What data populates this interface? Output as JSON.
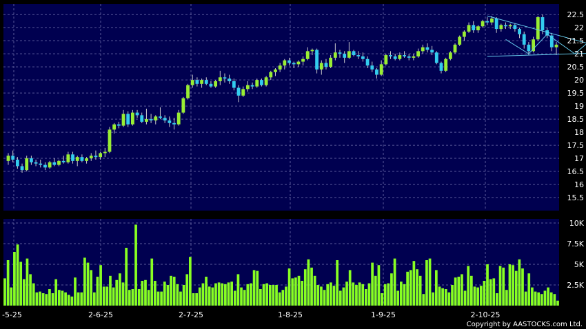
{
  "copyright": "Copyright by AASTOCKS.com Ltd.",
  "chart_data": [
    {
      "type": "candlestick",
      "panel": "price",
      "ylim": [
        15,
        22.9
      ],
      "y_ticks": [
        "15.5",
        "16",
        "16.5",
        "17",
        "17.5",
        "18",
        "18.5",
        "19",
        "19.5",
        "20",
        "20.5",
        "21",
        "21.5",
        "22",
        "22.5"
      ],
      "grid": true,
      "colors": {
        "up": "#99ee33",
        "down": "#33ccee",
        "wick": "#cccccc",
        "background": "#000050",
        "trendline": "#66ccee",
        "arrow": "#ffee44"
      },
      "trendlines": [
        {
          "from": [
            104,
            22.45
          ],
          "to": [
            132,
            21.1
          ]
        },
        {
          "from": [
            104,
            20.9
          ],
          "to": [
            132,
            21.05
          ]
        },
        {
          "from": [
            108,
            21.55
          ],
          "to": [
            113,
            21.0
          ]
        },
        {
          "from": [
            113,
            21.0
          ],
          "to": [
            117,
            21.75
          ]
        },
        {
          "from": [
            117,
            21.75
          ],
          "to": [
            123,
            21.0
          ]
        },
        {
          "from": [
            123,
            21.0
          ],
          "to": [
            127,
            21.6
          ]
        }
      ],
      "arrow_index": 130,
      "ohlc": [
        [
          16.9,
          17.2,
          16.75,
          17.1
        ],
        [
          17.1,
          17.3,
          16.85,
          16.95
        ],
        [
          16.95,
          17.05,
          16.6,
          16.7
        ],
        [
          16.7,
          16.8,
          16.45,
          16.55
        ],
        [
          16.55,
          17.1,
          16.5,
          17.0
        ],
        [
          17.0,
          17.1,
          16.75,
          16.85
        ],
        [
          16.85,
          16.95,
          16.7,
          16.8
        ],
        [
          16.8,
          16.95,
          16.65,
          16.75
        ],
        [
          16.75,
          16.85,
          16.55,
          16.65
        ],
        [
          16.65,
          16.9,
          16.6,
          16.85
        ],
        [
          16.85,
          17.0,
          16.7,
          16.75
        ],
        [
          16.75,
          16.95,
          16.7,
          16.9
        ],
        [
          16.9,
          17.1,
          16.8,
          16.85
        ],
        [
          16.85,
          17.25,
          16.8,
          17.15
        ],
        [
          17.15,
          17.25,
          16.8,
          16.9
        ],
        [
          16.9,
          17.1,
          16.7,
          17.05
        ],
        [
          17.05,
          17.15,
          16.85,
          16.9
        ],
        [
          16.9,
          17.05,
          16.8,
          17.0
        ],
        [
          17.0,
          17.2,
          16.9,
          17.1
        ],
        [
          17.1,
          17.3,
          16.95,
          17.05
        ],
        [
          17.05,
          17.25,
          16.95,
          17.2
        ],
        [
          17.2,
          17.4,
          17.05,
          17.25
        ],
        [
          17.25,
          18.2,
          17.2,
          18.1
        ],
        [
          18.1,
          18.35,
          17.95,
          18.3
        ],
        [
          18.3,
          18.4,
          18.15,
          18.25
        ],
        [
          18.25,
          18.85,
          18.2,
          18.7
        ],
        [
          18.7,
          18.8,
          18.2,
          18.3
        ],
        [
          18.3,
          18.85,
          18.25,
          18.75
        ],
        [
          18.75,
          18.85,
          18.55,
          18.65
        ],
        [
          18.65,
          18.75,
          18.35,
          18.4
        ],
        [
          18.4,
          18.9,
          18.3,
          18.5
        ],
        [
          18.5,
          18.7,
          18.35,
          18.45
        ],
        [
          18.45,
          18.65,
          18.3,
          18.6
        ],
        [
          18.6,
          18.95,
          18.5,
          18.55
        ],
        [
          18.55,
          18.65,
          18.35,
          18.45
        ],
        [
          18.45,
          18.6,
          18.2,
          18.35
        ],
        [
          18.35,
          18.55,
          18.1,
          18.3
        ],
        [
          18.3,
          18.85,
          18.25,
          18.75
        ],
        [
          18.75,
          19.35,
          18.7,
          19.3
        ],
        [
          19.3,
          19.85,
          19.25,
          19.8
        ],
        [
          19.8,
          20.2,
          19.7,
          20.0
        ],
        [
          20.0,
          20.1,
          19.75,
          19.85
        ],
        [
          19.85,
          20.05,
          19.7,
          20.0
        ],
        [
          20.0,
          20.1,
          19.8,
          19.85
        ],
        [
          19.85,
          19.95,
          19.7,
          19.75
        ],
        [
          19.75,
          20.0,
          19.7,
          19.95
        ],
        [
          19.95,
          20.35,
          19.8,
          20.1
        ],
        [
          20.1,
          20.25,
          19.9,
          20.05
        ],
        [
          20.05,
          20.2,
          19.85,
          19.95
        ],
        [
          19.95,
          20.05,
          19.6,
          19.7
        ],
        [
          19.7,
          19.8,
          19.15,
          19.4
        ],
        [
          19.4,
          19.75,
          19.35,
          19.65
        ],
        [
          19.65,
          19.95,
          19.55,
          19.8
        ],
        [
          19.8,
          19.9,
          19.65,
          19.75
        ],
        [
          19.75,
          20.05,
          19.7,
          20.0
        ],
        [
          20.0,
          20.05,
          19.75,
          19.8
        ],
        [
          19.8,
          20.15,
          19.75,
          20.1
        ],
        [
          20.1,
          20.35,
          20.0,
          20.3
        ],
        [
          20.3,
          20.45,
          20.15,
          20.4
        ],
        [
          20.4,
          20.65,
          20.3,
          20.55
        ],
        [
          20.55,
          20.8,
          20.4,
          20.75
        ],
        [
          20.75,
          20.85,
          20.55,
          20.65
        ],
        [
          20.65,
          20.7,
          20.45,
          20.6
        ],
        [
          20.6,
          20.75,
          20.5,
          20.7
        ],
        [
          20.7,
          20.9,
          20.55,
          20.8
        ],
        [
          20.8,
          21.25,
          20.75,
          21.1
        ],
        [
          21.1,
          21.2,
          20.95,
          21.15
        ],
        [
          21.15,
          21.2,
          20.25,
          20.4
        ],
        [
          20.4,
          20.75,
          20.2,
          20.65
        ],
        [
          20.65,
          20.8,
          20.4,
          20.5
        ],
        [
          20.5,
          20.95,
          20.45,
          20.85
        ],
        [
          20.85,
          21.4,
          20.75,
          21.05
        ],
        [
          21.05,
          21.15,
          20.85,
          21.0
        ],
        [
          21.0,
          21.1,
          20.65,
          20.85
        ],
        [
          20.85,
          21.45,
          20.8,
          21.1
        ],
        [
          21.1,
          21.15,
          20.9,
          20.95
        ],
        [
          20.95,
          21.1,
          20.8,
          20.9
        ],
        [
          20.9,
          21.05,
          20.7,
          20.8
        ],
        [
          20.8,
          20.9,
          20.45,
          20.55
        ],
        [
          20.55,
          20.7,
          20.3,
          20.4
        ],
        [
          20.4,
          20.45,
          20.05,
          20.2
        ],
        [
          20.2,
          20.75,
          20.15,
          20.6
        ],
        [
          20.6,
          21.0,
          20.55,
          20.95
        ],
        [
          20.95,
          21.1,
          20.8,
          20.9
        ],
        [
          20.9,
          21.0,
          20.75,
          20.8
        ],
        [
          20.8,
          21.05,
          20.75,
          20.95
        ],
        [
          20.95,
          21.1,
          20.85,
          20.9
        ],
        [
          20.9,
          21.0,
          20.75,
          20.85
        ],
        [
          20.85,
          21.0,
          20.75,
          20.9
        ],
        [
          20.9,
          21.2,
          20.85,
          21.1
        ],
        [
          21.1,
          21.35,
          21.0,
          21.25
        ],
        [
          21.25,
          21.4,
          21.05,
          21.15
        ],
        [
          21.15,
          21.3,
          20.95,
          21.05
        ],
        [
          21.05,
          21.1,
          20.6,
          20.65
        ],
        [
          20.65,
          20.7,
          20.25,
          20.35
        ],
        [
          20.35,
          20.85,
          20.3,
          20.8
        ],
        [
          20.8,
          21.1,
          20.75,
          21.05
        ],
        [
          21.05,
          21.4,
          21.0,
          21.35
        ],
        [
          21.35,
          21.7,
          21.3,
          21.65
        ],
        [
          21.65,
          21.9,
          21.5,
          21.85
        ],
        [
          21.85,
          22.2,
          21.8,
          22.1
        ],
        [
          22.1,
          22.25,
          21.8,
          21.9
        ],
        [
          21.9,
          22.1,
          21.8,
          22.05
        ],
        [
          22.05,
          22.3,
          22.0,
          22.25
        ],
        [
          22.25,
          22.4,
          22.1,
          22.2
        ],
        [
          22.2,
          22.45,
          22.1,
          22.35
        ],
        [
          22.35,
          22.4,
          21.8,
          21.95
        ],
        [
          21.95,
          22.15,
          21.85,
          22.1
        ],
        [
          22.1,
          22.2,
          21.95,
          22.05
        ],
        [
          22.05,
          22.15,
          21.95,
          22.1
        ],
        [
          22.1,
          22.15,
          21.85,
          21.95
        ],
        [
          21.95,
          22.0,
          21.6,
          21.75
        ],
        [
          21.75,
          21.85,
          21.2,
          21.35
        ],
        [
          21.35,
          21.45,
          20.95,
          21.1
        ],
        [
          21.1,
          21.65,
          21.05,
          21.55
        ],
        [
          21.55,
          22.45,
          21.5,
          22.4
        ],
        [
          22.4,
          22.5,
          21.75,
          21.9
        ],
        [
          21.9,
          22.0,
          21.6,
          21.7
        ],
        [
          21.7,
          21.8,
          21.1,
          21.25
        ],
        [
          21.25,
          21.45,
          20.95,
          21.35
        ]
      ]
    },
    {
      "type": "bar",
      "panel": "volume",
      "ylim": [
        0,
        10500
      ],
      "y_ticks": [
        "2.5K",
        "5K",
        "7.5K",
        "10K"
      ],
      "x_tick_labels": [
        "-5-25",
        "2-6-25",
        "2-7-25",
        "1-8-25",
        "1-9-25",
        "2-10-25"
      ],
      "bar_color": "#88ff22",
      "values": [
        3300,
        5500,
        2200,
        6500,
        7400,
        5300,
        3200,
        5700,
        3800,
        2700,
        1600,
        1700,
        1500,
        1400,
        2000,
        1500,
        3200,
        1900,
        1800,
        1600,
        1300,
        1100,
        3400,
        1600,
        1600,
        5800,
        5200,
        4300,
        1600,
        3500,
        4900,
        2300,
        2300,
        3600,
        2200,
        3100,
        3900,
        2800,
        7000,
        1900,
        2000,
        9800,
        2000,
        3000,
        3100,
        1900,
        5700,
        3000,
        1700,
        1700,
        2900,
        2500,
        3600,
        3500,
        2600,
        1700,
        2500,
        3800,
        5900,
        1500,
        1500,
        2200,
        2700,
        3500,
        2300,
        2200,
        2700,
        2800,
        2700,
        2600,
        2800,
        2900,
        1800,
        3800,
        2200,
        1900,
        2600,
        2700,
        4300,
        4200,
        2000,
        2600,
        2700,
        2500,
        2500,
        2500,
        1600,
        1900,
        2300,
        4500,
        3300,
        3400,
        3600,
        3000,
        4400,
        5600,
        4600,
        3600,
        2500,
        2300,
        1900,
        2600,
        2800,
        2400,
        5500,
        1800,
        2200,
        2900,
        4300,
        2800,
        2500,
        2800,
        2600,
        2000,
        2700,
        5200,
        3600,
        4900,
        1500,
        2600,
        2700,
        3900,
        5700,
        1800,
        2900,
        2600,
        4100,
        4300,
        5400,
        4400,
        3600,
        1400,
        5500,
        5700,
        1600,
        4300,
        2300,
        2100,
        2000,
        1600,
        2500,
        3400,
        3500,
        3800,
        1800,
        4800,
        3600,
        2300,
        2200,
        2400,
        3000,
        5000,
        3200,
        3300,
        1500,
        4800,
        4600,
        1900,
        5000,
        4900,
        4200,
        5600,
        4500,
        1700,
        3900,
        2200,
        1700,
        1600,
        1400,
        1800,
        2200,
        1600,
        1400,
        600
      ]
    }
  ]
}
